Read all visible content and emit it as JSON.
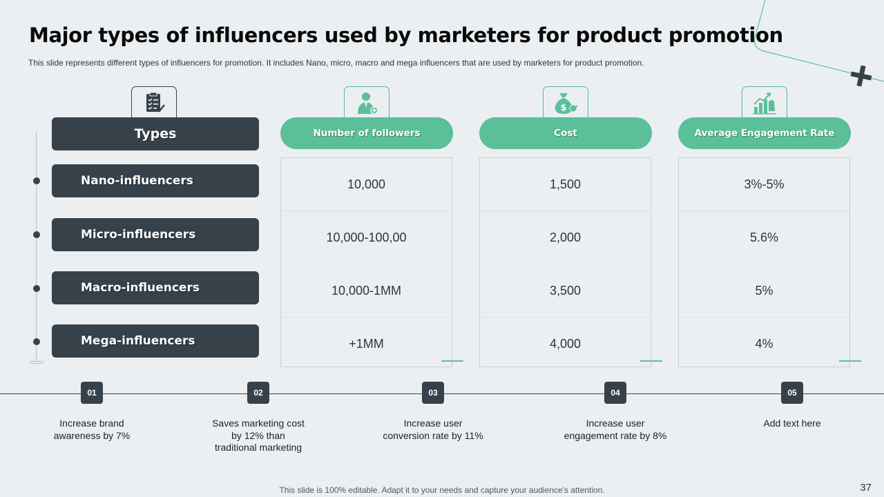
{
  "title": "Major types of influencers used by marketers for product promotion",
  "subtitle": "This slide represents different  types of influencers for promotion. It includes Nano, micro, macro and mega influencers  that are used by marketers for product promotion.",
  "table": {
    "type_header": "Types",
    "types": [
      "Nano-influencers",
      "Micro-influencers",
      "Macro-influencers",
      "Mega-influencers"
    ],
    "columns": [
      {
        "header": "Number of followers",
        "icon": "person-plus-icon",
        "values": [
          "10,000",
          "10,000-100,00",
          "10,000-1MM",
          "+1MM"
        ]
      },
      {
        "header": "Cost",
        "icon": "money-bag-icon",
        "values": [
          "1,500",
          "2,000",
          "3,500",
          "4,000"
        ]
      },
      {
        "header": "Average Engagement Rate",
        "icon": "growth-chart-icon",
        "values": [
          "3%-5%",
          "5.6%",
          "5%",
          "4%"
        ]
      }
    ],
    "type_icon": "clipboard-icon"
  },
  "steps": [
    {
      "num": "01",
      "text": "Increase brand\nawareness by 7%"
    },
    {
      "num": "02",
      "text": "Saves marketing cost\nby 12% than\ntraditional marketing"
    },
    {
      "num": "03",
      "text": "Increase user\nconversion rate by 11%"
    },
    {
      "num": "04",
      "text": "Increase user\nengagement rate by 8%"
    },
    {
      "num": "05",
      "text": "Add text here"
    }
  ],
  "footer": "This slide is 100% editable. Adapt it to your needs and capture your audience's attention.",
  "page_number": "37",
  "colors": {
    "accent": "#5bbf9a",
    "dark": "#37414a",
    "background": "#ebeff2"
  }
}
